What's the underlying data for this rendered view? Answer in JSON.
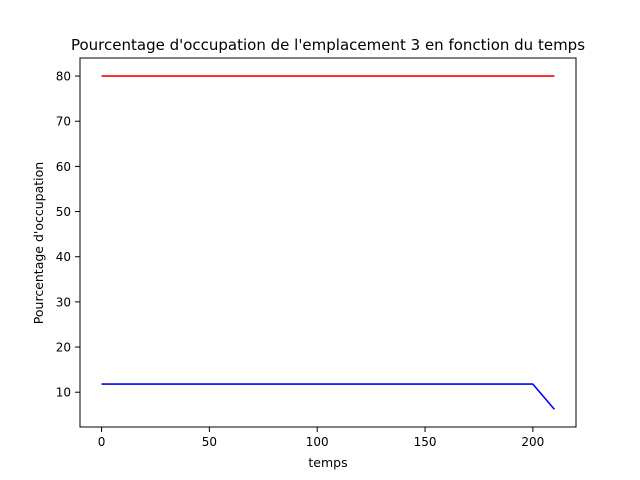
{
  "chart_data": {
    "type": "line",
    "title": "Pourcentage d'occupation de l'emplacement 3 en fonction du temps",
    "xlabel": "temps",
    "ylabel": "Pourcentage d'occupation",
    "xlim": [
      -10,
      220
    ],
    "ylim": [
      2.3,
      84
    ],
    "xticks": [
      0,
      50,
      100,
      150,
      200
    ],
    "yticks": [
      10,
      20,
      30,
      40,
      50,
      60,
      70,
      80
    ],
    "grid": false,
    "legend": "none",
    "series": [
      {
        "color": "#ff0000",
        "x": [
          0,
          210
        ],
        "y": [
          80,
          80
        ]
      },
      {
        "color": "#0000ff",
        "x": [
          0,
          200,
          210
        ],
        "y": [
          11.8,
          11.8,
          6.2
        ]
      }
    ]
  }
}
